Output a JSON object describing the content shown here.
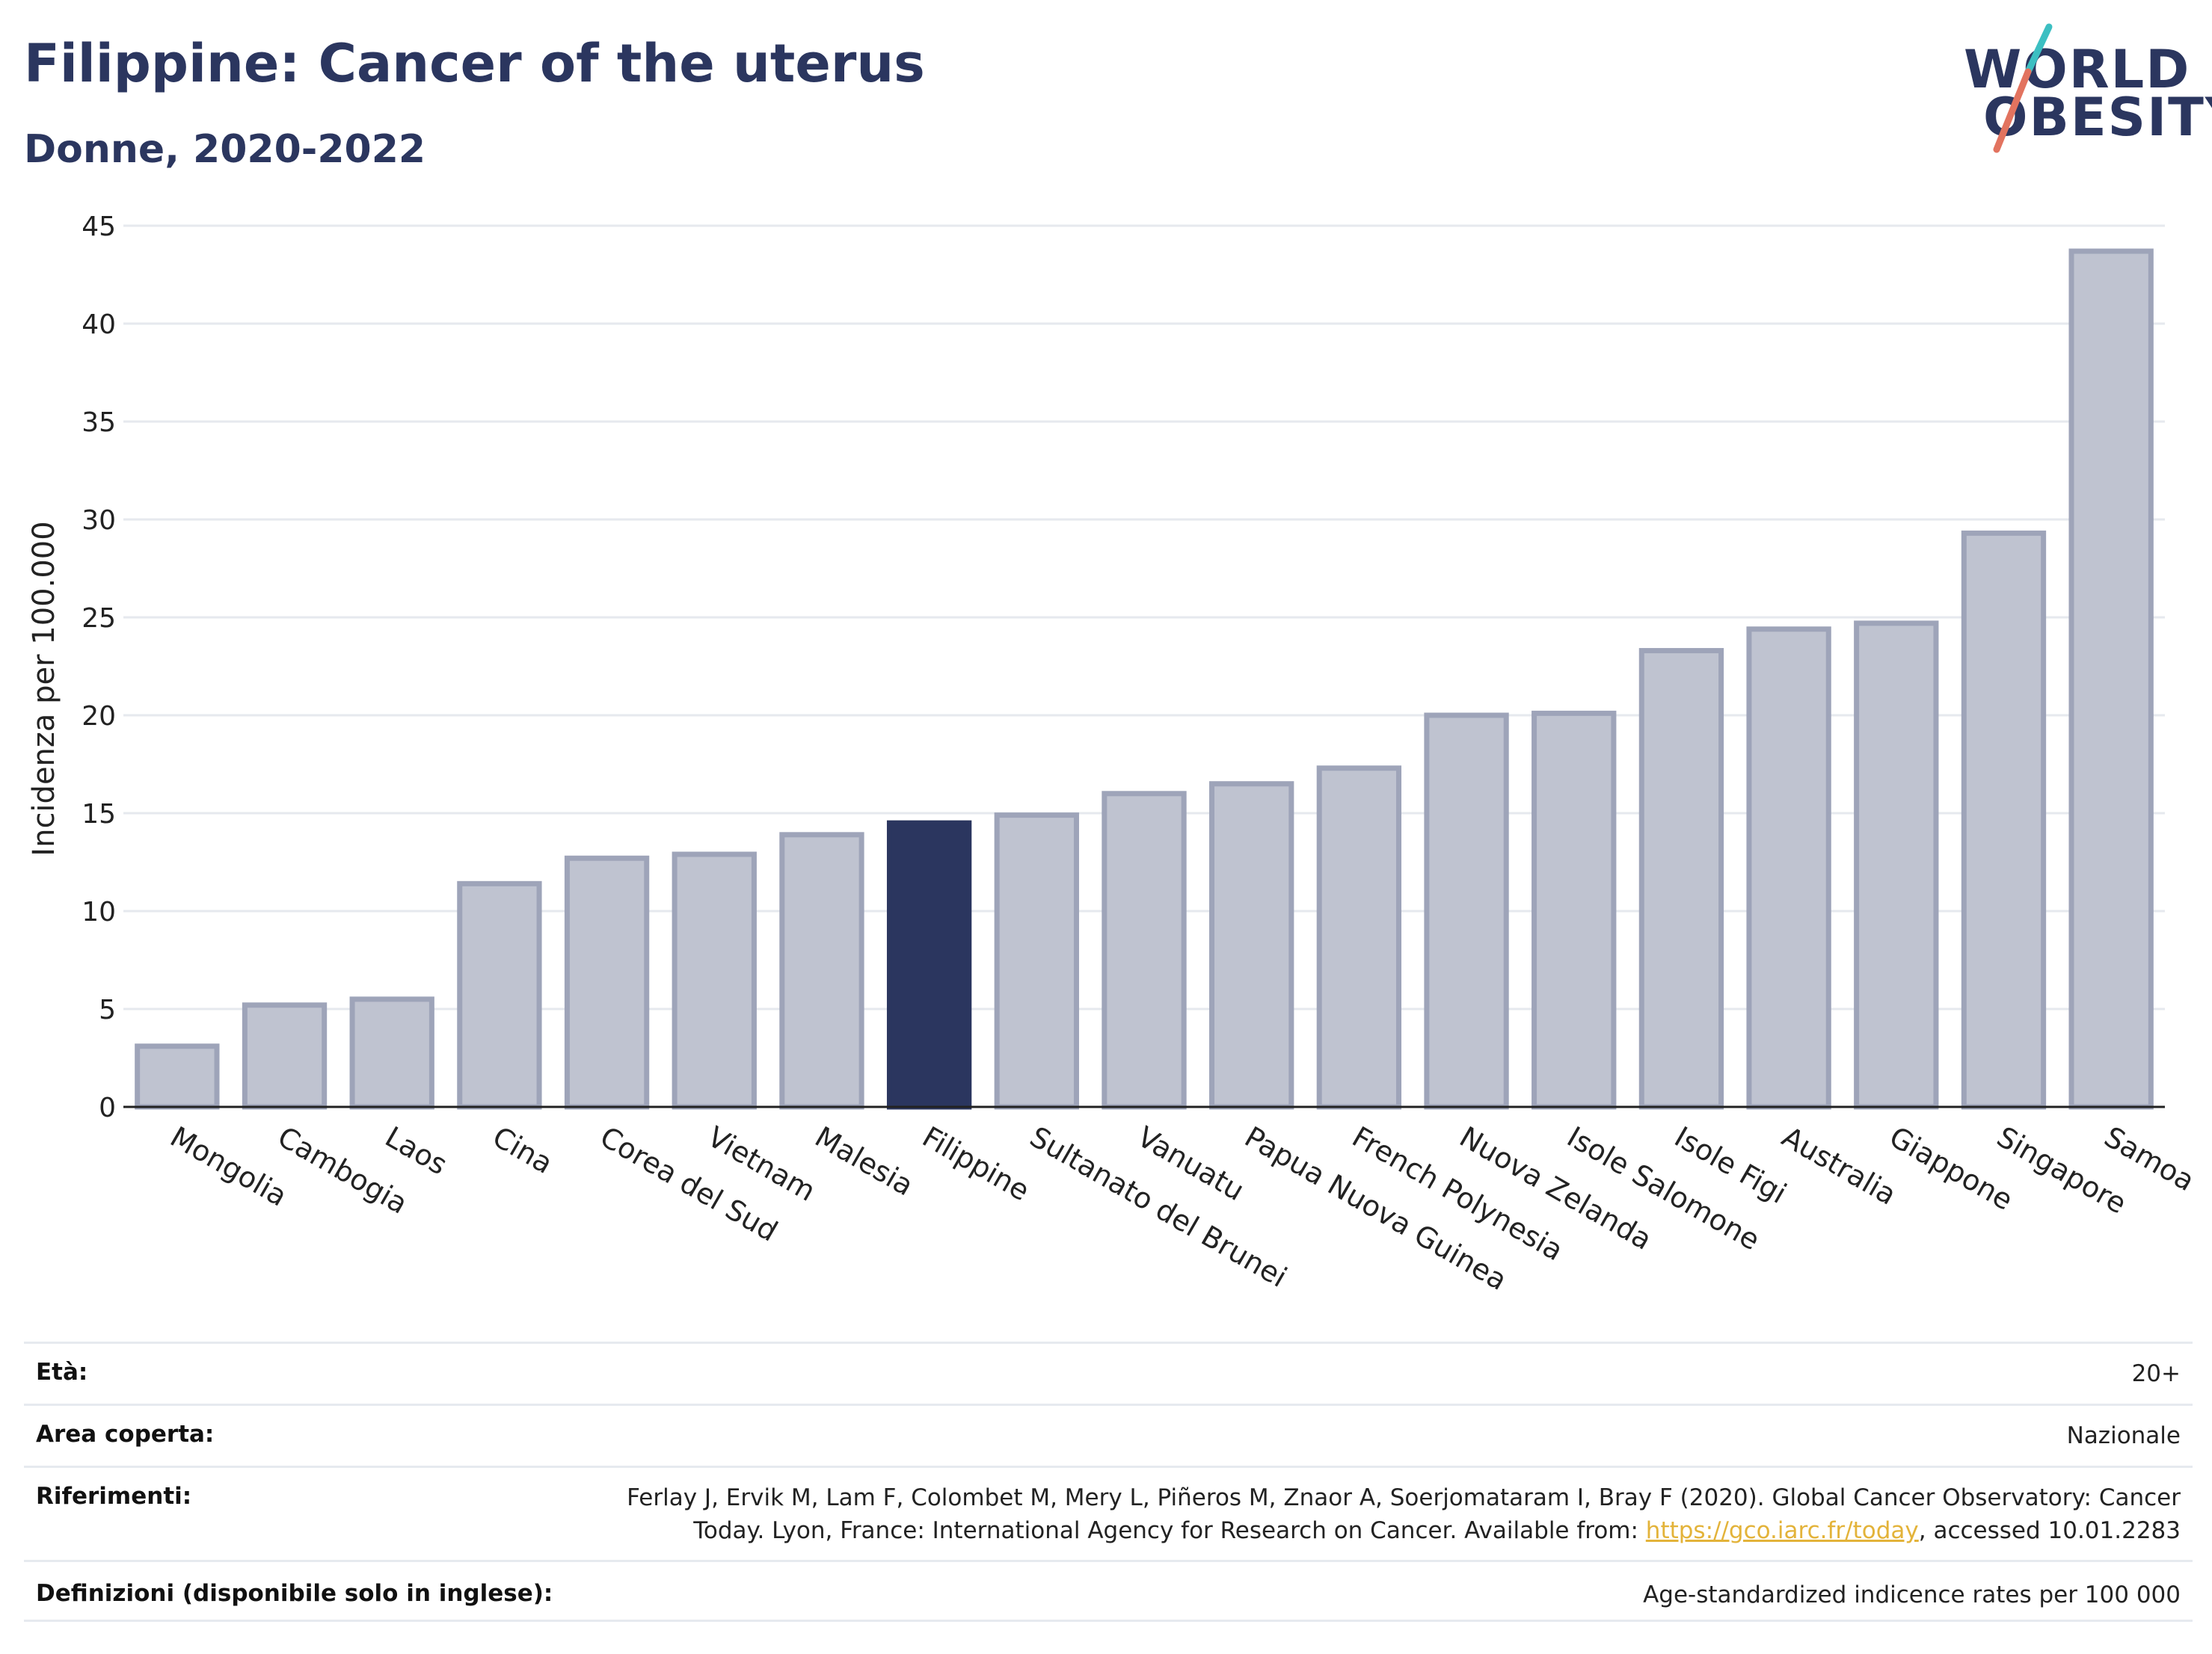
{
  "header": {
    "title": "Filippine: Cancer of the uterus",
    "subtitle": "Donne, 2020-2022",
    "logo_line1": "WORLD",
    "logo_line2": "OBESITY"
  },
  "colors": {
    "bar": "#bfc3d0",
    "bar_border": "#9ea4b9",
    "highlight": "#2b365f",
    "grid": "#e6e9ee",
    "logo_teal": "#3cbfc2",
    "logo_coral": "#e2735f"
  },
  "chart_data": {
    "type": "bar",
    "title": "Filippine: Cancer of the uterus",
    "subtitle": "Donne, 2020-2022",
    "xlabel": "",
    "ylabel": "Incidenza per 100.000",
    "ylim": [
      0,
      45
    ],
    "yticks": [
      0,
      5,
      10,
      15,
      20,
      25,
      30,
      35,
      40,
      45
    ],
    "grid": true,
    "highlight_category": "Filippine",
    "categories": [
      "Mongolia",
      "Cambogia",
      "Laos",
      "Cina",
      "Corea del Sud",
      "Vietnam",
      "Malesia",
      "Filippine",
      "Sultanato del Brunei",
      "Vanuatu",
      "Papua Nuova Guinea",
      "French Polynesia",
      "Nuova Zelanda",
      "Isole Salomone",
      "Isole Figi",
      "Australia",
      "Giappone",
      "Singapore",
      "Samoa"
    ],
    "values": [
      3.1,
      5.2,
      5.5,
      11.4,
      12.7,
      12.9,
      13.9,
      14.5,
      14.9,
      16.0,
      16.5,
      17.3,
      20.0,
      20.1,
      23.3,
      24.4,
      24.7,
      29.3,
      43.7
    ]
  },
  "meta": [
    {
      "key": "Età:",
      "value": "20+"
    },
    {
      "key": "Area coperta:",
      "value": "Nazionale"
    },
    {
      "key": "Riferimenti:",
      "value_line1": "Ferlay J, Ervik M, Lam F, Colombet M, Mery L, Piñeros M, Znaor A, Soerjomataram I, Bray F (2020). Global Cancer Observatory: Cancer",
      "value_line2_pre": "Today. Lyon, France: International Agency for Research on Cancer. Available from: ",
      "link": "https://gco.iarc.fr/today",
      "value_line2_post": ", accessed 10.01.2283"
    },
    {
      "key": "Definizioni (disponibile solo in inglese):",
      "value": "Age-standardized indicence rates per 100 000"
    }
  ]
}
